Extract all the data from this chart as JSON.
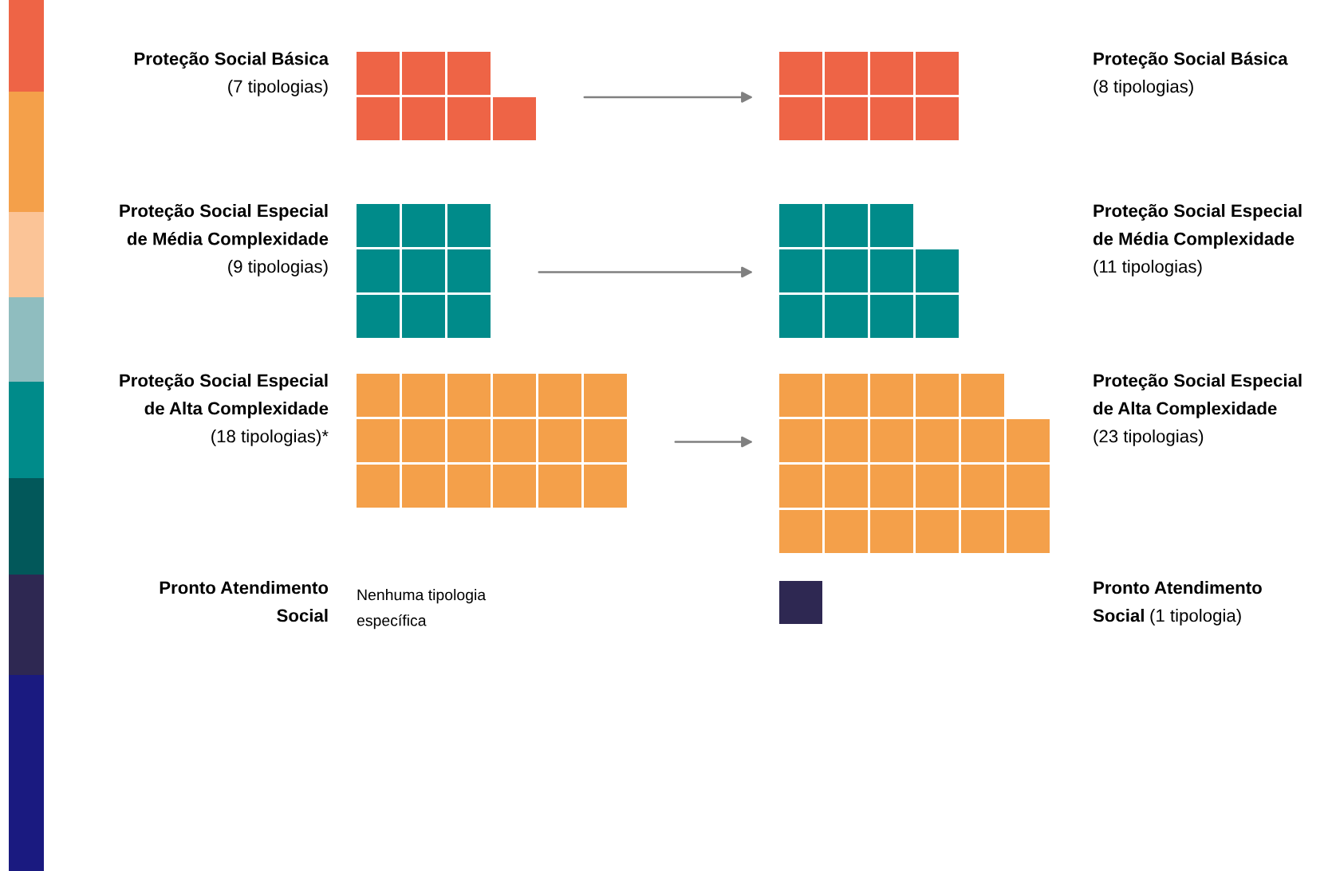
{
  "chart_data": [
    {
      "type": "other",
      "categories": [
        "Proteção Social Básica",
        "Proteção Social Especial de Média Complexidade",
        "Proteção Social Especial de Alta Complexidade",
        "Pronto Atendimento Social"
      ],
      "values": [
        7,
        9,
        18,
        null
      ],
      "colors": [
        "#ee6446",
        "#008b8a",
        "#f4a04a",
        "#2e2852"
      ],
      "value_labels": [
        "(7 tipologias)",
        "(9 tipologias)",
        "(18 tipologias)*",
        null
      ],
      "annotations": [
        "Nenhuma tipologia específica"
      ]
    },
    {
      "type": "other",
      "categories": [
        "Proteção Social Básica",
        "Proteção Social Especial de Média Complexidade",
        "Proteção Social Especial de Alta Complexidade",
        "Pronto Atendimento Social"
      ],
      "values": [
        8,
        11,
        23,
        1
      ],
      "colors": [
        "#ee6446",
        "#008b8a",
        "#f4a04a",
        "#2e2852"
      ],
      "value_labels": [
        "(8 tipologias)",
        "(11 tipologias)",
        "(23 tipologias)",
        "(1 tipologia)"
      ]
    }
  ]
}
